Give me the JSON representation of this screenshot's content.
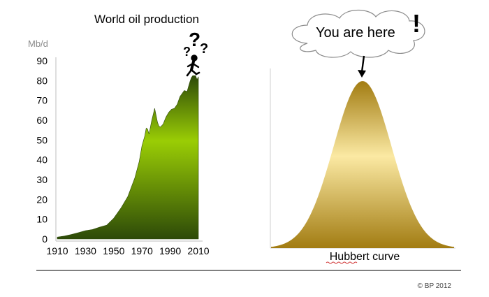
{
  "colors": {
    "oil_light": "#9acd05",
    "oil_dark": "#2d4a08",
    "bell_light": "#fbe9a3",
    "bell_dark": "#a27c12",
    "axis": "#bdbdbd"
  },
  "icons": [
    "question-marks-icon",
    "walking-figure-icon",
    "cloud-callout-icon",
    "arrow-down-icon"
  ],
  "chart_data": [
    {
      "type": "area",
      "title": "World oil production",
      "ylabel": "Mb/d",
      "xlabel": "",
      "xlim": [
        1910,
        2010
      ],
      "ylim": [
        0,
        90
      ],
      "x_ticks": [
        "1910",
        "1930",
        "1950",
        "1970",
        "1990",
        "2010"
      ],
      "y_ticks": [
        "0",
        "10",
        "20",
        "30",
        "40",
        "50",
        "60",
        "70",
        "80",
        "90"
      ],
      "grid": false,
      "annotation": "? ? ?",
      "x": [
        1910,
        1915,
        1920,
        1925,
        1930,
        1935,
        1940,
        1945,
        1950,
        1955,
        1960,
        1965,
        1968,
        1970,
        1972,
        1973,
        1974,
        1975,
        1977,
        1978,
        1979,
        1980,
        1981,
        1982,
        1983,
        1985,
        1987,
        1989,
        1991,
        1993,
        1995,
        1997,
        1998,
        2000,
        2002,
        2004,
        2005,
        2006,
        2008,
        2009,
        2010
      ],
      "y": [
        1.0,
        1.5,
        2.3,
        3.2,
        4.2,
        4.8,
        6.0,
        7.0,
        10.5,
        15.5,
        21.5,
        31.0,
        39.0,
        47.0,
        52.0,
        56.0,
        55.5,
        53.0,
        60.0,
        63.0,
        66.0,
        62.5,
        59.0,
        57.0,
        56.5,
        58.0,
        61.5,
        64.0,
        65.5,
        66.0,
        68.0,
        72.0,
        73.0,
        75.0,
        74.5,
        79.5,
        81.5,
        82.5,
        82.5,
        80.5,
        82.0
      ]
    },
    {
      "type": "area",
      "title": "Hubbert curve",
      "annotation": "You are here",
      "annotation_mark": "!",
      "distribution": "bell",
      "peak_fraction": 1.0,
      "grid": false
    }
  ],
  "footer": {
    "copyright": "© BP 2012"
  }
}
